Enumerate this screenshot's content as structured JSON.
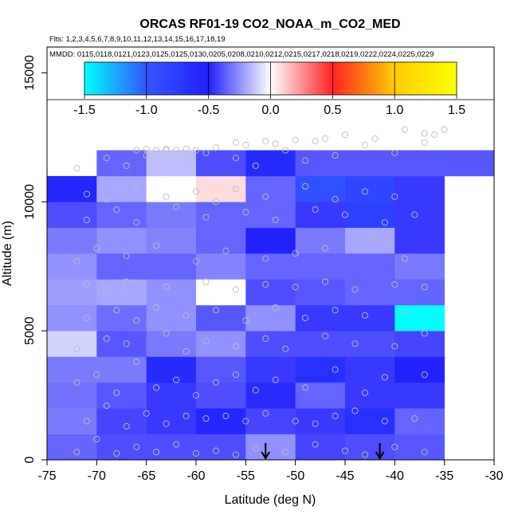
{
  "chart_data": {
    "type": "heatmap",
    "title": "ORCAS RF01-19 CO2_NOAA_m_CO2_MED",
    "subtitle_flights": "Flts: 1,2,3,4,5,6,7,8,9,10,11,12,13,14,15,16,17,18,19",
    "subtitle_dates": "MMDD: 0115,0118,0121,0123,0125,0125,0130,0205,0208,0210,0212,0215,0217,0218,0219,0222,0224,0225,0229",
    "xlabel": "Latitude (deg N)",
    "ylabel": "Altitude (m)",
    "xlim": [
      -75,
      -30
    ],
    "ylim": [
      0,
      16000
    ],
    "x_ticks": [
      -75,
      -70,
      -65,
      -60,
      -55,
      -50,
      -45,
      -40,
      -35,
      -30
    ],
    "y_ticks": [
      0,
      5000,
      10000,
      15000
    ],
    "colorbar": {
      "range": [
        -1.5,
        1.5
      ],
      "ticks": [
        -1.5,
        -1.0,
        -0.5,
        0.0,
        0.5,
        1.0,
        1.5
      ],
      "tick_labels": [
        "-1.5",
        "-1.0",
        "-0.5",
        "0.0",
        "0.5",
        "1.0",
        "1.5"
      ],
      "colors": [
        "#00ffff",
        "#3355ff",
        "#2222ff",
        "#ffffff",
        "#ff2222",
        "#ffcc00",
        "#ffff00"
      ]
    },
    "bin_width_lat": 5,
    "bin_height_alt": 1000,
    "cells": [
      {
        "lat": -75,
        "alt": 0,
        "value": -0.35
      },
      {
        "lat": -75,
        "alt": 1000,
        "value": -0.3
      },
      {
        "lat": -75,
        "alt": 2000,
        "value": -0.32
      },
      {
        "lat": -75,
        "alt": 3000,
        "value": -0.3
      },
      {
        "lat": -75,
        "alt": 4000,
        "value": -0.1
      },
      {
        "lat": -75,
        "alt": 5000,
        "value": -0.25
      },
      {
        "lat": -75,
        "alt": 6000,
        "value": -0.22
      },
      {
        "lat": -75,
        "alt": 7000,
        "value": -0.25
      },
      {
        "lat": -75,
        "alt": 8000,
        "value": -0.3
      },
      {
        "lat": -75,
        "alt": 9000,
        "value": -0.4
      },
      {
        "lat": -75,
        "alt": 10000,
        "value": -0.55
      },
      {
        "lat": -70,
        "alt": 0,
        "value": -0.4
      },
      {
        "lat": -70,
        "alt": 1000,
        "value": -0.42
      },
      {
        "lat": -70,
        "alt": 2000,
        "value": -0.38
      },
      {
        "lat": -70,
        "alt": 3000,
        "value": -0.3
      },
      {
        "lat": -70,
        "alt": 4000,
        "value": -0.38
      },
      {
        "lat": -70,
        "alt": 5000,
        "value": -0.33
      },
      {
        "lat": -70,
        "alt": 6000,
        "value": -0.2
      },
      {
        "lat": -70,
        "alt": 7000,
        "value": -0.35
      },
      {
        "lat": -70,
        "alt": 8000,
        "value": -0.25
      },
      {
        "lat": -70,
        "alt": 9000,
        "value": -0.35
      },
      {
        "lat": -70,
        "alt": 10000,
        "value": -0.2
      },
      {
        "lat": -70,
        "alt": 11000,
        "value": -0.35
      },
      {
        "lat": -65,
        "alt": 0,
        "value": -0.4
      },
      {
        "lat": -65,
        "alt": 1000,
        "value": -0.45
      },
      {
        "lat": -65,
        "alt": 2000,
        "value": -0.45
      },
      {
        "lat": -65,
        "alt": 3000,
        "value": -0.6
      },
      {
        "lat": -65,
        "alt": 4000,
        "value": -0.3
      },
      {
        "lat": -65,
        "alt": 5000,
        "value": -0.25
      },
      {
        "lat": -65,
        "alt": 6000,
        "value": -0.25
      },
      {
        "lat": -65,
        "alt": 7000,
        "value": -0.35
      },
      {
        "lat": -65,
        "alt": 8000,
        "value": -0.28
      },
      {
        "lat": -65,
        "alt": 9000,
        "value": -0.3
      },
      {
        "lat": -65,
        "alt": 10000,
        "value": 0.0
      },
      {
        "lat": -65,
        "alt": 11000,
        "value": -0.15
      },
      {
        "lat": -60,
        "alt": 0,
        "value": -0.4
      },
      {
        "lat": -60,
        "alt": 1000,
        "value": -0.55
      },
      {
        "lat": -60,
        "alt": 2000,
        "value": -0.4
      },
      {
        "lat": -60,
        "alt": 3000,
        "value": -0.38
      },
      {
        "lat": -60,
        "alt": 4000,
        "value": -0.25
      },
      {
        "lat": -60,
        "alt": 5000,
        "value": -0.38
      },
      {
        "lat": -60,
        "alt": 6000,
        "value": 0.0
      },
      {
        "lat": -60,
        "alt": 7000,
        "value": -0.28
      },
      {
        "lat": -60,
        "alt": 8000,
        "value": -0.35
      },
      {
        "lat": -60,
        "alt": 9000,
        "value": -0.35
      },
      {
        "lat": -60,
        "alt": 10000,
        "value": 0.08
      },
      {
        "lat": -60,
        "alt": 11000,
        "value": -0.4
      },
      {
        "lat": -55,
        "alt": 0,
        "value": -0.25
      },
      {
        "lat": -55,
        "alt": 1000,
        "value": -0.42
      },
      {
        "lat": -55,
        "alt": 2000,
        "value": -0.48
      },
      {
        "lat": -55,
        "alt": 3000,
        "value": -0.45
      },
      {
        "lat": -55,
        "alt": 4000,
        "value": -0.4
      },
      {
        "lat": -55,
        "alt": 5000,
        "value": -0.25
      },
      {
        "lat": -55,
        "alt": 6000,
        "value": -0.4
      },
      {
        "lat": -55,
        "alt": 7000,
        "value": -0.35
      },
      {
        "lat": -55,
        "alt": 8000,
        "value": -0.5
      },
      {
        "lat": -55,
        "alt": 9000,
        "value": -0.35
      },
      {
        "lat": -55,
        "alt": 10000,
        "value": -0.35
      },
      {
        "lat": -55,
        "alt": 11000,
        "value": -0.6
      },
      {
        "lat": -50,
        "alt": 0,
        "value": -0.42
      },
      {
        "lat": -50,
        "alt": 1000,
        "value": -0.45
      },
      {
        "lat": -50,
        "alt": 2000,
        "value": -0.35
      },
      {
        "lat": -50,
        "alt": 3000,
        "value": -0.65
      },
      {
        "lat": -50,
        "alt": 4000,
        "value": -0.4
      },
      {
        "lat": -50,
        "alt": 5000,
        "value": -0.45
      },
      {
        "lat": -50,
        "alt": 6000,
        "value": -0.38
      },
      {
        "lat": -50,
        "alt": 7000,
        "value": -0.35
      },
      {
        "lat": -50,
        "alt": 8000,
        "value": -0.3
      },
      {
        "lat": -50,
        "alt": 9000,
        "value": -0.45
      },
      {
        "lat": -50,
        "alt": 10000,
        "value": -0.95
      },
      {
        "lat": -50,
        "alt": 11000,
        "value": -0.38
      },
      {
        "lat": -45,
        "alt": 0,
        "value": -0.4
      },
      {
        "lat": -45,
        "alt": 1000,
        "value": -0.65
      },
      {
        "lat": -45,
        "alt": 2000,
        "value": -0.45
      },
      {
        "lat": -45,
        "alt": 3000,
        "value": -0.45
      },
      {
        "lat": -45,
        "alt": 4000,
        "value": -0.4
      },
      {
        "lat": -45,
        "alt": 5000,
        "value": -0.45
      },
      {
        "lat": -45,
        "alt": 6000,
        "value": -0.35
      },
      {
        "lat": -45,
        "alt": 7000,
        "value": -0.35
      },
      {
        "lat": -45,
        "alt": 8000,
        "value": -0.2
      },
      {
        "lat": -45,
        "alt": 9000,
        "value": -0.8
      },
      {
        "lat": -45,
        "alt": 10000,
        "value": -0.85
      },
      {
        "lat": -45,
        "alt": 11000,
        "value": -0.38
      },
      {
        "lat": -40,
        "alt": 0,
        "value": -0.38
      },
      {
        "lat": -40,
        "alt": 1000,
        "value": -0.35
      },
      {
        "lat": -40,
        "alt": 2000,
        "value": -0.45
      },
      {
        "lat": -40,
        "alt": 3000,
        "value": -0.5
      },
      {
        "lat": -40,
        "alt": 4000,
        "value": -0.42
      },
      {
        "lat": -40,
        "alt": 5000,
        "value": -1.5
      },
      {
        "lat": -40,
        "alt": 6000,
        "value": -0.35
      },
      {
        "lat": -40,
        "alt": 7000,
        "value": -0.3
      },
      {
        "lat": -40,
        "alt": 8000,
        "value": -0.45
      },
      {
        "lat": -40,
        "alt": 9000,
        "value": -0.45
      },
      {
        "lat": -40,
        "alt": 10000,
        "value": -0.45
      },
      {
        "lat": -40,
        "alt": 11000,
        "value": -0.38
      },
      {
        "lat": -35,
        "alt": 11000,
        "value": -0.38
      }
    ],
    "arrows_lat": [
      -53,
      -41.5
    ],
    "observations": [
      [
        -72,
        300
      ],
      [
        -70,
        800
      ],
      [
        -68,
        250
      ],
      [
        -66,
        500
      ],
      [
        -64,
        300
      ],
      [
        -62,
        600
      ],
      [
        -60,
        250
      ],
      [
        -58,
        350
      ],
      [
        -56,
        200
      ],
      [
        -54,
        450
      ],
      [
        -51,
        300
      ],
      [
        -48,
        600
      ],
      [
        -45,
        350
      ],
      [
        -43,
        200
      ],
      [
        -40,
        500
      ],
      [
        -37,
        300
      ],
      [
        -71,
        1500
      ],
      [
        -69,
        2100
      ],
      [
        -67,
        1300
      ],
      [
        -65,
        1800
      ],
      [
        -63,
        1400
      ],
      [
        -61,
        1700
      ],
      [
        -59,
        1600
      ],
      [
        -57,
        1700
      ],
      [
        -55,
        1500
      ],
      [
        -53,
        1800
      ],
      [
        -50,
        1500
      ],
      [
        -48,
        1400
      ],
      [
        -46,
        1700
      ],
      [
        -44,
        1900
      ],
      [
        -41,
        1500
      ],
      [
        -38,
        1600
      ],
      [
        -72,
        3000
      ],
      [
        -70,
        3300
      ],
      [
        -68,
        2600
      ],
      [
        -66,
        3800
      ],
      [
        -64,
        2800
      ],
      [
        -62,
        3100
      ],
      [
        -60,
        2500
      ],
      [
        -58,
        3000
      ],
      [
        -56,
        3300
      ],
      [
        -54,
        2700
      ],
      [
        -52,
        3100
      ],
      [
        -49,
        2800
      ],
      [
        -46,
        3500
      ],
      [
        -43,
        2600
      ],
      [
        -41,
        3200
      ],
      [
        -37,
        3300
      ],
      [
        -72,
        4300
      ],
      [
        -69,
        4700
      ],
      [
        -67,
        4500
      ],
      [
        -63,
        4900
      ],
      [
        -61,
        4200
      ],
      [
        -59,
        4600
      ],
      [
        -56,
        4400
      ],
      [
        -53,
        4700
      ],
      [
        -51,
        4300
      ],
      [
        -47,
        4800
      ],
      [
        -44,
        4500
      ],
      [
        -40,
        4400
      ],
      [
        -37,
        4900
      ],
      [
        -71,
        5500
      ],
      [
        -68,
        5800
      ],
      [
        -66,
        5400
      ],
      [
        -64,
        5900
      ],
      [
        -61,
        5600
      ],
      [
        -58,
        5800
      ],
      [
        -55,
        5400
      ],
      [
        -52,
        5900
      ],
      [
        -49,
        5500
      ],
      [
        -46,
        5800
      ],
      [
        -43,
        5600
      ],
      [
        -39,
        5700
      ],
      [
        -71,
        6800
      ],
      [
        -69,
        6600
      ],
      [
        -67,
        6900
      ],
      [
        -63,
        6700
      ],
      [
        -59,
        6900
      ],
      [
        -56,
        6600
      ],
      [
        -53,
        6800
      ],
      [
        -50,
        6700
      ],
      [
        -47,
        6900
      ],
      [
        -44,
        6600
      ],
      [
        -40,
        6800
      ],
      [
        -37,
        6700
      ],
      [
        -72,
        7700
      ],
      [
        -70,
        8200
      ],
      [
        -67,
        7900
      ],
      [
        -64,
        8300
      ],
      [
        -60,
        7700
      ],
      [
        -57,
        8100
      ],
      [
        -53,
        7800
      ],
      [
        -50,
        8000
      ],
      [
        -47,
        8200
      ],
      [
        -42,
        8500
      ],
      [
        -39,
        7800
      ],
      [
        -71,
        9300
      ],
      [
        -68,
        9700
      ],
      [
        -66,
        9200
      ],
      [
        -62,
        9800
      ],
      [
        -59,
        9400
      ],
      [
        -55,
        9600
      ],
      [
        -52,
        9300
      ],
      [
        -48,
        9700
      ],
      [
        -45,
        9500
      ],
      [
        -41,
        9200
      ],
      [
        -38,
        9500
      ],
      [
        -71,
        10300
      ],
      [
        -69,
        10100
      ],
      [
        -66,
        10600
      ],
      [
        -63,
        10200
      ],
      [
        -60,
        10400
      ],
      [
        -58,
        10000
      ],
      [
        -56,
        10500
      ],
      [
        -53,
        10200
      ],
      [
        -49,
        10600
      ],
      [
        -46,
        10100
      ],
      [
        -43,
        10400
      ],
      [
        -40,
        10200
      ],
      [
        -72,
        11300
      ],
      [
        -69,
        11700
      ],
      [
        -67,
        11400
      ],
      [
        -65,
        11800
      ],
      [
        -63,
        12000
      ],
      [
        -61,
        11600
      ],
      [
        -59,
        11900
      ],
      [
        -56,
        11700
      ],
      [
        -54,
        11400
      ],
      [
        -51,
        12000
      ],
      [
        -49,
        11600
      ],
      [
        -46,
        11800
      ],
      [
        -43,
        12200
      ],
      [
        -40,
        11900
      ],
      [
        -37,
        12300
      ],
      [
        -66,
        12000
      ],
      [
        -65,
        12050
      ],
      [
        -64,
        12000
      ],
      [
        -63,
        12050
      ],
      [
        -62,
        12000
      ],
      [
        -61,
        12050
      ],
      [
        -60,
        12000
      ],
      [
        -58,
        12100
      ],
      [
        -56,
        12300
      ],
      [
        -55,
        12200
      ],
      [
        -53,
        12350
      ],
      [
        -52,
        12250
      ],
      [
        -50,
        12400
      ],
      [
        -48,
        12350
      ],
      [
        -47,
        12450
      ],
      [
        -45,
        12600
      ],
      [
        -42,
        12450
      ],
      [
        -39,
        12800
      ],
      [
        -37,
        12650
      ],
      [
        -36,
        12600
      ],
      [
        -35,
        12800
      ]
    ]
  }
}
